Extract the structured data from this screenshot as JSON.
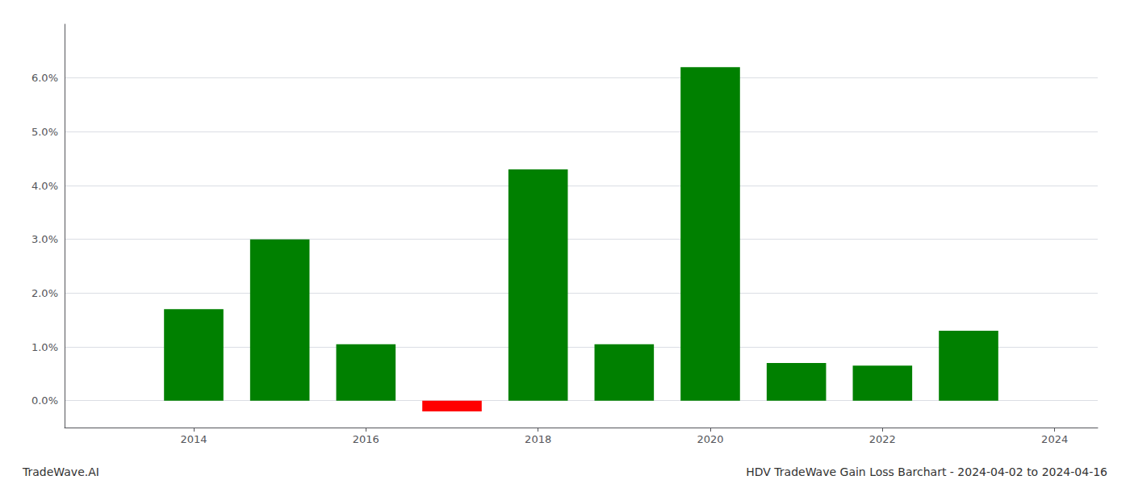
{
  "chart_data": {
    "type": "bar",
    "x": [
      2014,
      2015,
      2016,
      2017,
      2018,
      2019,
      2020,
      2021,
      2022,
      2023
    ],
    "values": [
      0.017,
      0.03,
      0.0105,
      -0.002,
      0.043,
      0.0105,
      0.062,
      0.007,
      0.0065,
      0.013
    ],
    "colors": [
      "#008000",
      "#008000",
      "#008000",
      "#ff0000",
      "#008000",
      "#008000",
      "#008000",
      "#008000",
      "#008000",
      "#008000"
    ],
    "xlim": [
      2012.5,
      2024.5
    ],
    "xticks": [
      2014,
      2016,
      2018,
      2020,
      2022,
      2024
    ],
    "ylim": [
      -0.005,
      0.07
    ],
    "yticks": [
      {
        "value": 0.0,
        "label": "0.0%"
      },
      {
        "value": 0.01,
        "label": "1.0%"
      },
      {
        "value": 0.02,
        "label": "2.0%"
      },
      {
        "value": 0.03,
        "label": "3.0%"
      },
      {
        "value": 0.04,
        "label": "4.0%"
      },
      {
        "value": 0.05,
        "label": "5.0%"
      },
      {
        "value": 0.06,
        "label": "6.0%"
      }
    ],
    "grid": true,
    "annotations": [
      "TradeWave.AI",
      "HDV TradeWave Gain Loss Barchart - 2024-04-02 to 2024-04-16"
    ]
  }
}
